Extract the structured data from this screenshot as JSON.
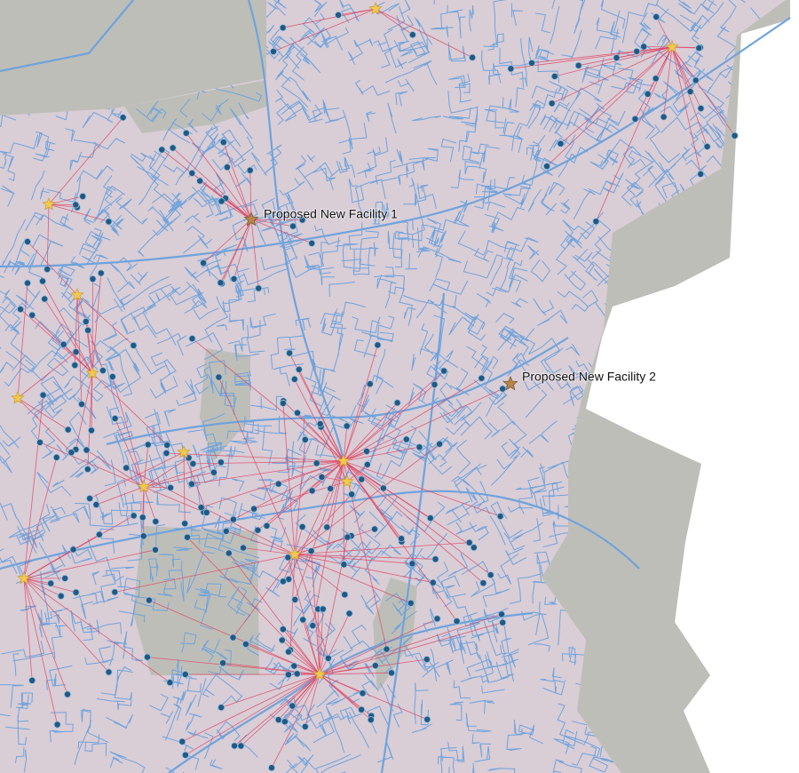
{
  "facilities": [
    {
      "label": "Proposed New Facility 1"
    },
    {
      "label": "Proposed New Facility 2"
    }
  ]
}
